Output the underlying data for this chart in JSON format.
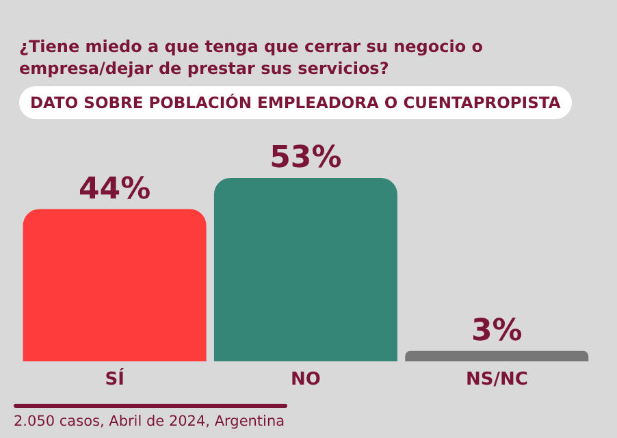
{
  "chart_data": {
    "type": "bar",
    "title": "¿Tiene miedo a que tenga que cerrar su negocio o empresa/dejar de prestar sus servicios?",
    "subtitle": "DATO SOBRE POBLACIÓN EMPLEADORA O CUENTAPROPISTA",
    "categories": [
      "SÍ",
      "NO",
      "NS/NC"
    ],
    "values": [
      44,
      53,
      3
    ],
    "colors": [
      "#ff3c3c",
      "#358676",
      "#777777"
    ],
    "value_labels": [
      "44%",
      "53%",
      "3%"
    ],
    "annotations": [
      "2.050 casos, Abril de 2024, Argentina"
    ]
  }
}
